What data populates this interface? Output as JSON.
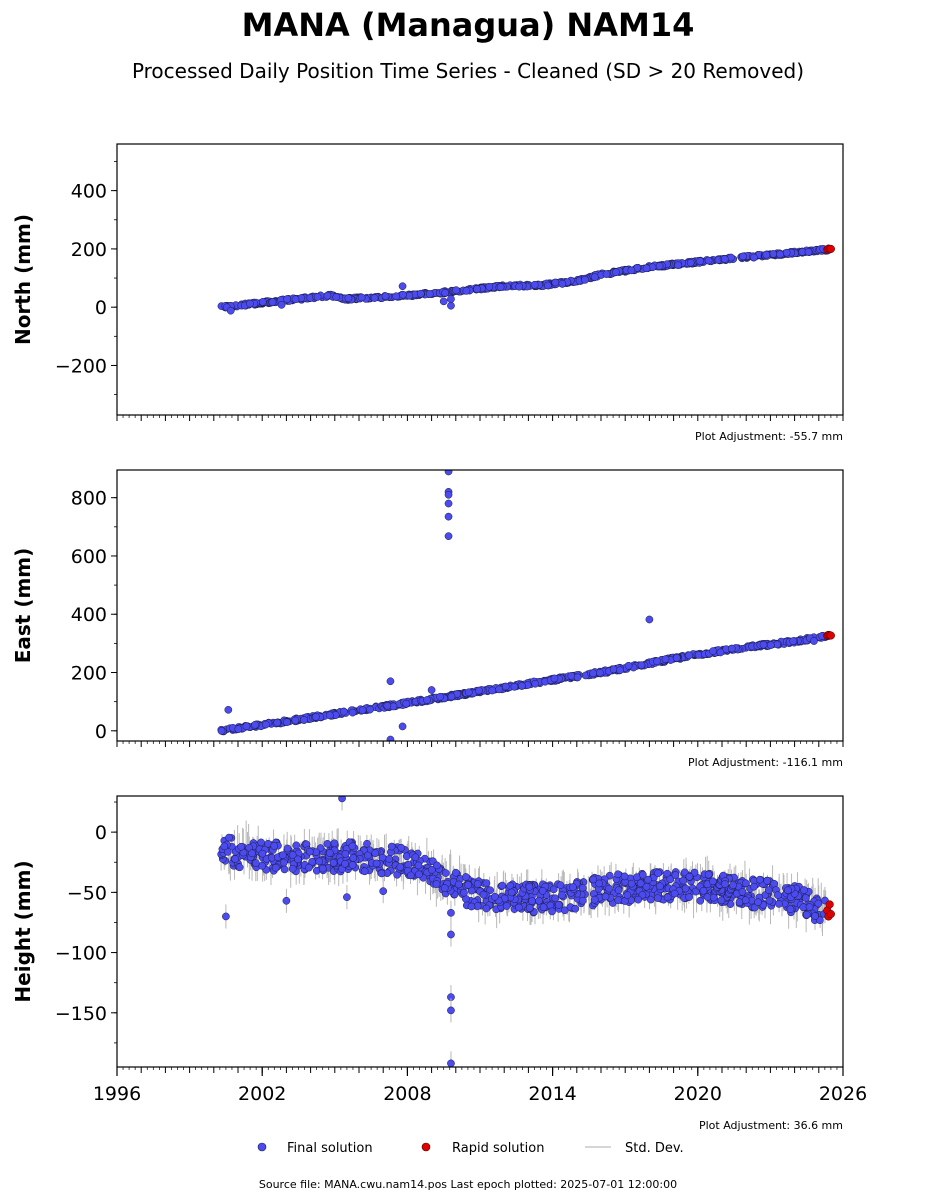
{
  "figure": {
    "title": "MANA (Managua) NAM14",
    "subtitle": "Processed Daily Position Time Series - Cleaned (SD > 20 Removed)",
    "source_note": "Source file: MANA.cwu.nam14.pos  Last epoch plotted: 2025-07-01 12:00:00"
  },
  "legend": {
    "final": "Final solution",
    "rapid": "Rapid solution",
    "std": "Std. Dev."
  },
  "colors": {
    "final": "#4b4bf0",
    "rapid": "#e00000",
    "std": "#b8b8b8",
    "edge": "#1a1a40"
  },
  "chart_data": [
    {
      "type": "scatter",
      "panel": "north",
      "title": "",
      "xlabel": "",
      "ylabel": "North (mm)",
      "xlim": [
        1996,
        2026
      ],
      "ylim": [
        -370,
        560
      ],
      "yticks": [
        -200,
        0,
        200,
        400
      ],
      "ytick_labels": [
        "−200",
        "0",
        "200",
        "400"
      ],
      "adjustment_label": "Plot Adjustment: -55.7 mm",
      "final_trend": [
        [
          2000.3,
          0
        ],
        [
          2004.8,
          40
        ],
        [
          2005.5,
          28
        ],
        [
          2008.0,
          40
        ],
        [
          2010.0,
          55
        ],
        [
          2012.0,
          73
        ],
        [
          2013.5,
          75
        ],
        [
          2015.0,
          90
        ],
        [
          2016.0,
          112
        ],
        [
          2018.0,
          138
        ],
        [
          2020.0,
          155
        ],
        [
          2022.0,
          172
        ],
        [
          2024.0,
          187
        ],
        [
          2025.4,
          198
        ]
      ],
      "final_outliers": [
        [
          2000.7,
          -12
        ],
        [
          2002.8,
          8
        ],
        [
          2007.8,
          72
        ],
        [
          2009.5,
          20
        ],
        [
          2009.8,
          28
        ],
        [
          2009.8,
          5
        ]
      ],
      "rapid": [
        [
          2025.35,
          198
        ],
        [
          2025.4,
          201
        ],
        [
          2025.45,
          199
        ],
        [
          2025.5,
          200
        ]
      ],
      "noise_mm": 4
    },
    {
      "type": "scatter",
      "panel": "east",
      "title": "",
      "xlabel": "",
      "ylabel": "East (mm)",
      "xlim": [
        1996,
        2026
      ],
      "ylim": [
        -35,
        895
      ],
      "yticks": [
        0,
        200,
        400,
        600,
        800
      ],
      "ytick_labels": [
        "0",
        "200",
        "400",
        "600",
        "800"
      ],
      "adjustment_label": "Plot Adjustment: -116.1 mm",
      "final_trend": [
        [
          2000.3,
          0
        ],
        [
          2002.0,
          20
        ],
        [
          2004.0,
          45
        ],
        [
          2006.0,
          70
        ],
        [
          2008.0,
          95
        ],
        [
          2010.0,
          122
        ],
        [
          2012.0,
          148
        ],
        [
          2014.0,
          175
        ],
        [
          2016.0,
          200
        ],
        [
          2018.0,
          232
        ],
        [
          2020.0,
          262
        ],
        [
          2022.0,
          287
        ],
        [
          2024.0,
          307
        ],
        [
          2025.4,
          327
        ]
      ],
      "final_outliers": [
        [
          2000.6,
          72
        ],
        [
          2007.3,
          170
        ],
        [
          2007.3,
          -30
        ],
        [
          2007.8,
          15
        ],
        [
          2009.7,
          890
        ],
        [
          2009.7,
          820
        ],
        [
          2009.7,
          810
        ],
        [
          2009.7,
          780
        ],
        [
          2009.7,
          735
        ],
        [
          2009.7,
          668
        ],
        [
          2009.0,
          140
        ],
        [
          2018.0,
          382
        ],
        [
          2024.8,
          308
        ]
      ],
      "rapid": [
        [
          2025.35,
          327
        ],
        [
          2025.4,
          329
        ],
        [
          2025.45,
          328
        ],
        [
          2025.5,
          327
        ]
      ],
      "noise_mm": 5
    },
    {
      "type": "scatter",
      "panel": "height",
      "title": "",
      "xlabel": "",
      "ylabel": "Height (mm)",
      "xlim": [
        1996,
        2026
      ],
      "ylim": [
        -195,
        30
      ],
      "yticks": [
        -150,
        -100,
        -50,
        0
      ],
      "ytick_labels": [
        "−150",
        "−100",
        "−50",
        "0"
      ],
      "xticks": [
        1996,
        2002,
        2008,
        2014,
        2020,
        2026
      ],
      "xtick_labels": [
        "1996",
        "2002",
        "2008",
        "2014",
        "2020",
        "2026"
      ],
      "adjustment_label": "Plot Adjustment: 36.6 mm",
      "final_trend": [
        [
          2000.3,
          -15
        ],
        [
          2002.0,
          -20
        ],
        [
          2004.0,
          -22
        ],
        [
          2006.0,
          -20
        ],
        [
          2008.0,
          -25
        ],
        [
          2009.5,
          -38
        ],
        [
          2010.5,
          -50
        ],
        [
          2012.0,
          -55
        ],
        [
          2014.0,
          -55
        ],
        [
          2016.0,
          -48
        ],
        [
          2018.0,
          -45
        ],
        [
          2020.0,
          -45
        ],
        [
          2022.0,
          -50
        ],
        [
          2024.0,
          -55
        ],
        [
          2025.3,
          -65
        ]
      ],
      "final_outliers": [
        [
          2000.5,
          -70
        ],
        [
          2003.0,
          -57
        ],
        [
          2005.3,
          28
        ],
        [
          2005.5,
          -54
        ],
        [
          2007.0,
          -49
        ],
        [
          2009.8,
          -67
        ],
        [
          2009.8,
          -85
        ],
        [
          2009.8,
          -137
        ],
        [
          2009.8,
          -148
        ],
        [
          2009.8,
          -192
        ]
      ],
      "rapid": [
        [
          2025.35,
          -65
        ],
        [
          2025.4,
          -70
        ],
        [
          2025.45,
          -60
        ],
        [
          2025.5,
          -68
        ]
      ],
      "noise_mm": 12
    }
  ]
}
